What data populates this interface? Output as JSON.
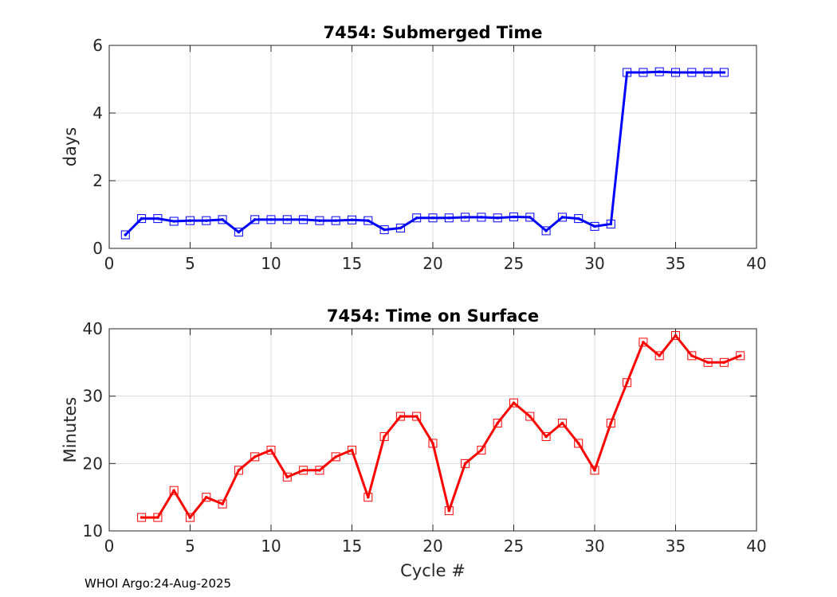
{
  "footer": "WHOI Argo:24-Aug-2025",
  "chart_data": [
    {
      "type": "line",
      "title": "7454: Submerged Time",
      "xlabel": "",
      "ylabel": "days",
      "xlim": [
        0,
        40
      ],
      "ylim": [
        0,
        6
      ],
      "xticks": [
        0,
        5,
        10,
        15,
        20,
        25,
        30,
        35,
        40
      ],
      "yticks": [
        0,
        2,
        4,
        6
      ],
      "grid": true,
      "marker": "square",
      "color": "#0000ff",
      "series": [
        {
          "x": [
            1,
            2,
            3,
            4,
            5,
            6,
            7,
            8,
            9,
            10,
            11,
            12,
            13,
            14,
            15,
            16,
            17,
            18,
            19,
            20,
            21,
            22,
            23,
            24,
            25,
            26,
            27,
            28,
            29,
            30,
            31,
            32,
            33,
            34,
            35,
            36,
            37,
            38
          ],
          "y": [
            0.4,
            0.88,
            0.88,
            0.8,
            0.82,
            0.82,
            0.85,
            0.48,
            0.85,
            0.85,
            0.85,
            0.85,
            0.82,
            0.82,
            0.84,
            0.82,
            0.55,
            0.6,
            0.9,
            0.9,
            0.9,
            0.92,
            0.92,
            0.9,
            0.93,
            0.92,
            0.52,
            0.92,
            0.88,
            0.65,
            0.72,
            5.2,
            5.2,
            5.22,
            5.2,
            5.2,
            5.2,
            5.2
          ]
        }
      ]
    },
    {
      "type": "line",
      "title": "7454: Time on Surface",
      "xlabel": "Cycle #",
      "ylabel": "Minutes",
      "xlim": [
        0,
        40
      ],
      "ylim": [
        10,
        40
      ],
      "xticks": [
        0,
        5,
        10,
        15,
        20,
        25,
        30,
        35,
        40
      ],
      "yticks": [
        10,
        20,
        30,
        40
      ],
      "grid": true,
      "marker": "square",
      "color": "#ff0000",
      "series": [
        {
          "x": [
            2,
            3,
            4,
            5,
            6,
            7,
            8,
            9,
            10,
            11,
            12,
            13,
            14,
            15,
            16,
            17,
            18,
            19,
            20,
            21,
            22,
            23,
            24,
            25,
            26,
            27,
            28,
            29,
            30,
            31,
            32,
            33,
            34,
            35,
            36,
            37,
            38,
            39
          ],
          "y": [
            12,
            12,
            16,
            12,
            15,
            14,
            19,
            21,
            22,
            18,
            19,
            19,
            21,
            22,
            15,
            24,
            27,
            27,
            23,
            13,
            20,
            22,
            26,
            29,
            27,
            24,
            26,
            23,
            19,
            26,
            32,
            38,
            36,
            39,
            36,
            35,
            35,
            36
          ]
        }
      ]
    }
  ]
}
